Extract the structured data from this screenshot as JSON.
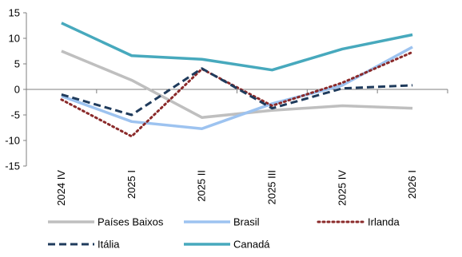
{
  "chart_data": {
    "type": "line",
    "title": "",
    "xlabel": "",
    "ylabel": "",
    "ylim": [
      -15,
      15
    ],
    "yticks": [
      -15,
      -10,
      -5,
      0,
      5,
      10,
      15
    ],
    "categories": [
      "2024 IV",
      "2025 I",
      "2025 II",
      "2025 III",
      "2025 IV",
      "2026 I"
    ],
    "grid": false,
    "legend": "bottom",
    "series": [
      {
        "name": "Países Baixos",
        "color": "#bfbfbf",
        "style": "solid",
        "values": [
          7.5,
          1.8,
          -5.5,
          -4.1,
          -3.2,
          -3.7
        ]
      },
      {
        "name": "Brasil",
        "color": "#9dc3f0",
        "style": "solid",
        "values": [
          -1.3,
          -6.3,
          -7.7,
          -2.8,
          0.8,
          8.3
        ]
      },
      {
        "name": "Irlanda",
        "color": "#8b2a2a",
        "style": "dotted",
        "values": [
          -2.0,
          -9.2,
          4.0,
          -3.2,
          1.3,
          7.3
        ]
      },
      {
        "name": "Itália",
        "color": "#1f3b5c",
        "style": "dashed",
        "values": [
          -1.0,
          -5.0,
          4.1,
          -3.7,
          0.2,
          0.8
        ]
      },
      {
        "name": "Canadá",
        "color": "#47a9bd",
        "style": "solid",
        "values": [
          13.0,
          6.6,
          5.9,
          3.8,
          7.9,
          10.7
        ]
      }
    ]
  }
}
